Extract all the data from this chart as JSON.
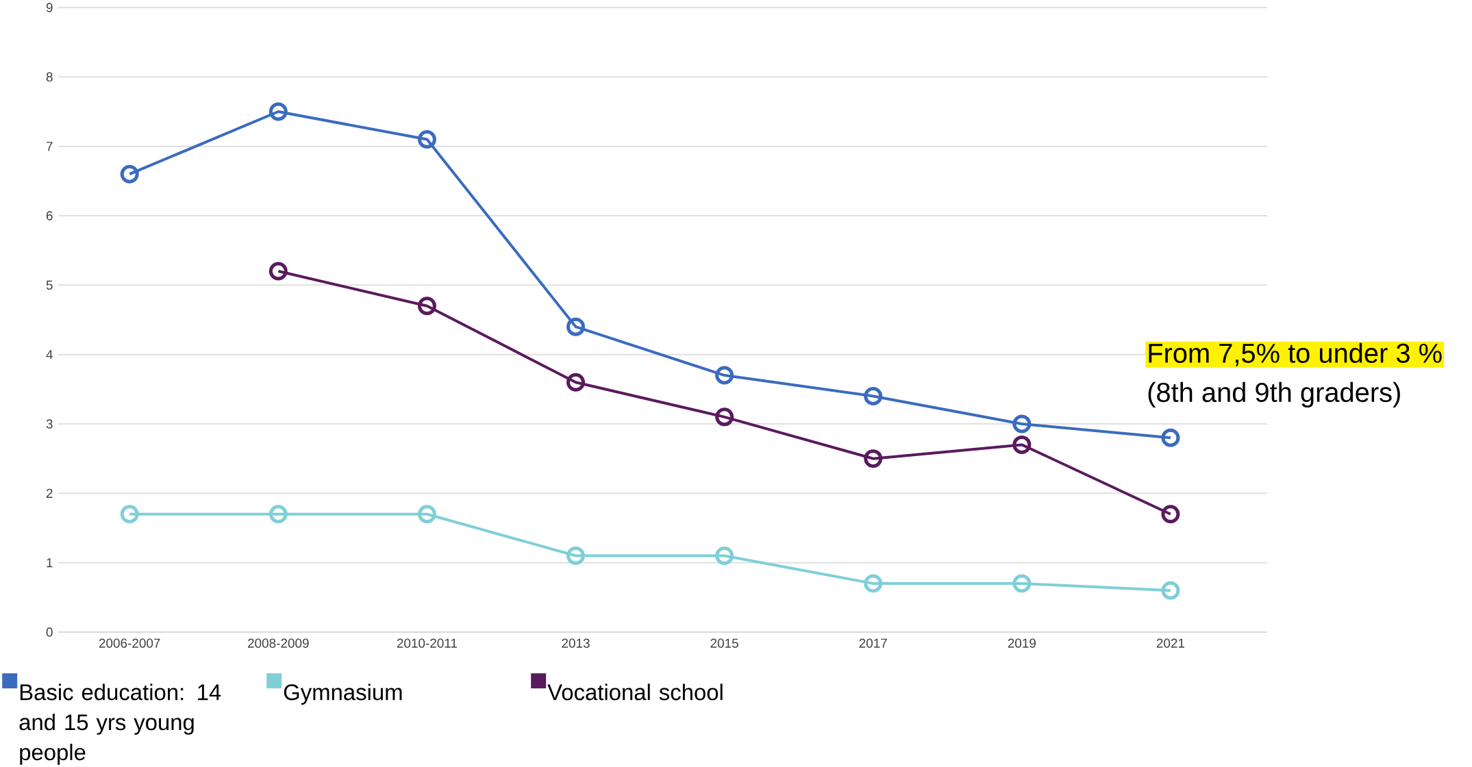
{
  "chart_data": {
    "type": "line",
    "categories": [
      "2006-2007",
      "2008-2009",
      "2010-2011",
      "2013",
      "2015",
      "2017",
      "2019",
      "2021"
    ],
    "series": [
      {
        "name": "Basic education: 14 and 15 yrs young people",
        "color": "#3a6bbf",
        "values": [
          6.6,
          7.5,
          7.1,
          4.4,
          3.7,
          3.4,
          3.0,
          2.8
        ]
      },
      {
        "name": "Gymnasium",
        "color": "#7fcfd8",
        "values": [
          1.7,
          1.7,
          1.7,
          1.1,
          1.1,
          0.7,
          0.7,
          0.6
        ]
      },
      {
        "name": "Vocational school",
        "color": "#5a1a5e",
        "values": [
          null,
          5.2,
          4.7,
          3.6,
          3.1,
          2.5,
          2.7,
          1.7
        ]
      }
    ],
    "ylim": [
      0,
      9
    ],
    "yticks": [
      0,
      1,
      2,
      3,
      4,
      5,
      6,
      7,
      8,
      9
    ],
    "grid": "y",
    "legend": "bottom",
    "marker": "circle",
    "line_style": "solid",
    "annotations": [
      "From 7,5% to under 3 %",
      "(8th and 9th graders)"
    ]
  }
}
